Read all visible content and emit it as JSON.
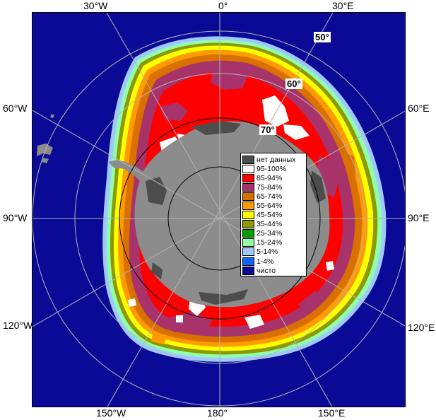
{
  "longitude_labels": {
    "top": [
      "30°W",
      "0°",
      "30°E"
    ],
    "bottom": [
      "150°W",
      "180°",
      "150°E"
    ],
    "left": [
      "60°W",
      "90°W",
      "120°W"
    ],
    "right": [
      "60°E",
      "90°E",
      "120°E"
    ]
  },
  "latitude_labels": [
    "50°",
    "60°",
    "70°"
  ],
  "legend": [
    {
      "label": "нет данных",
      "color": "#4d4d4d"
    },
    {
      "label": "95-100%",
      "color": "#ffffff"
    },
    {
      "label": "85-94%",
      "color": "#ff0000"
    },
    {
      "label": "75-84%",
      "color": "#a8336a"
    },
    {
      "label": "65-74%",
      "color": "#d97000"
    },
    {
      "label": "55-64%",
      "color": "#ff9a00"
    },
    {
      "label": "45-54%",
      "color": "#ffff00"
    },
    {
      "label": "35-44%",
      "color": "#8c9a00"
    },
    {
      "label": "25-34%",
      "color": "#00a000"
    },
    {
      "label": "15-24%",
      "color": "#90ffa8"
    },
    {
      "label": "5-14%",
      "color": "#9fc8ff"
    },
    {
      "label": "1-4%",
      "color": "#0a64ff"
    },
    {
      "label": "чисто",
      "color": "#0a0a96"
    }
  ],
  "colors": {
    "open_water": "#0a0a96",
    "land": "#8c8c8c",
    "no_data": "#4d4d4d",
    "grid": "#b4b4b4"
  }
}
